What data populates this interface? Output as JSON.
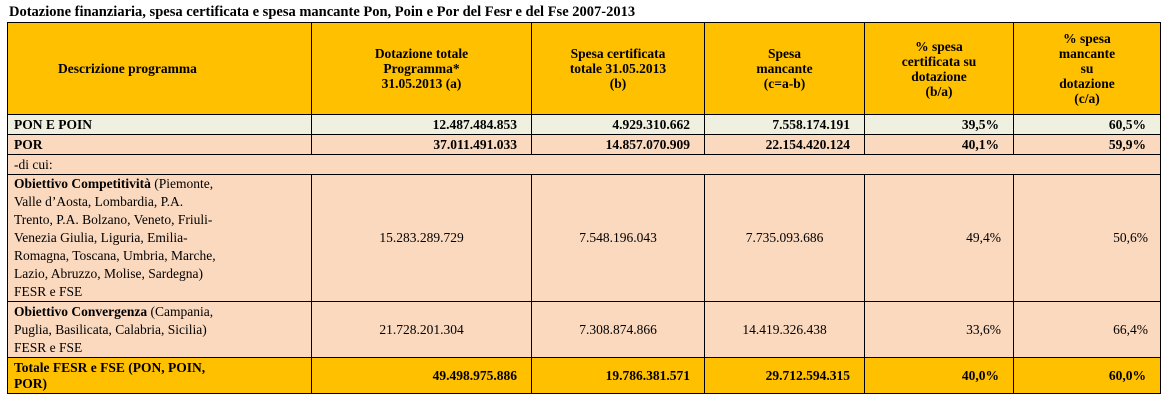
{
  "title": "Dotazione finanziaria, spesa certificata e spesa mancante Pon, Poin e Por del Fesr e del Fse 2007-2013",
  "headers": {
    "descrizione": "Descrizione programma",
    "dotazione": [
      "Dotazione totale",
      "Programma*",
      "31.05.2013 (a)"
    ],
    "spesa_cert": [
      "Spesa certificata",
      "totale 31.05.2013",
      "(b)"
    ],
    "spesa_manc": [
      "Spesa",
      "mancante",
      "(c=a-b)"
    ],
    "pct_cert": [
      "% spesa",
      "certificata su",
      "dotazione",
      "(b/a)"
    ],
    "pct_manc": [
      "% spesa",
      "mancante",
      "su",
      "dotazione",
      "(c/a)"
    ]
  },
  "rows": {
    "pon": {
      "label": "PON E POIN",
      "dotazione": "12.487.484.853",
      "spesa_cert": "4.929.310.662",
      "spesa_manc": "7.558.174.191",
      "pct_cert": "39,5%",
      "pct_manc": "60,5%"
    },
    "por": {
      "label": "POR",
      "dotazione": "37.011.491.033",
      "spesa_cert": "14.857.070.909",
      "spesa_manc": "22.154.420.124",
      "pct_cert": "40,1%",
      "pct_manc": "59,9%"
    },
    "dicui": {
      "label": "-di cui:"
    },
    "obj1": {
      "label_bold": "Obiettivo Competitività",
      "label_lines": [
        "(Piemonte,",
        "Valle d’Aosta, Lombardia, P.A.",
        "Trento, P.A. Bolzano, Veneto, Friuli-",
        "Venezia Giulia, Liguria, Emilia-",
        "Romagna, Toscana, Umbria, Marche,",
        "Lazio, Abruzzo, Molise, Sardegna)",
        "FESR e FSE"
      ],
      "dotazione": "15.283.289.729",
      "spesa_cert": "7.548.196.043",
      "spesa_manc": "7.735.093.686",
      "pct_cert": "49,4%",
      "pct_manc": "50,6%"
    },
    "obj2": {
      "label_bold": "Obiettivo Convergenza",
      "label_lines": [
        "(Campania,",
        "Puglia, Basilicata, Calabria, Sicilia)",
        "FESR e FSE"
      ],
      "dotazione": "21.728.201.304",
      "spesa_cert": "7.308.874.866",
      "spesa_manc": "14.419.326.438",
      "pct_cert": "33,6%",
      "pct_manc": "66,4%"
    },
    "total": {
      "label": [
        "Totale FESR e FSE (PON, POIN,",
        "POR)"
      ],
      "dotazione": "49.498.975.886",
      "spesa_cert": "19.786.381.571",
      "spesa_manc": "29.712.594.315",
      "pct_cert": "40,0%",
      "pct_manc": "60,0%"
    }
  },
  "colors": {
    "header_bg": "#ffc000",
    "pon_bg": "#f0f0e0",
    "por_bg": "#fad9bf",
    "total_bg": "#ffc000"
  }
}
